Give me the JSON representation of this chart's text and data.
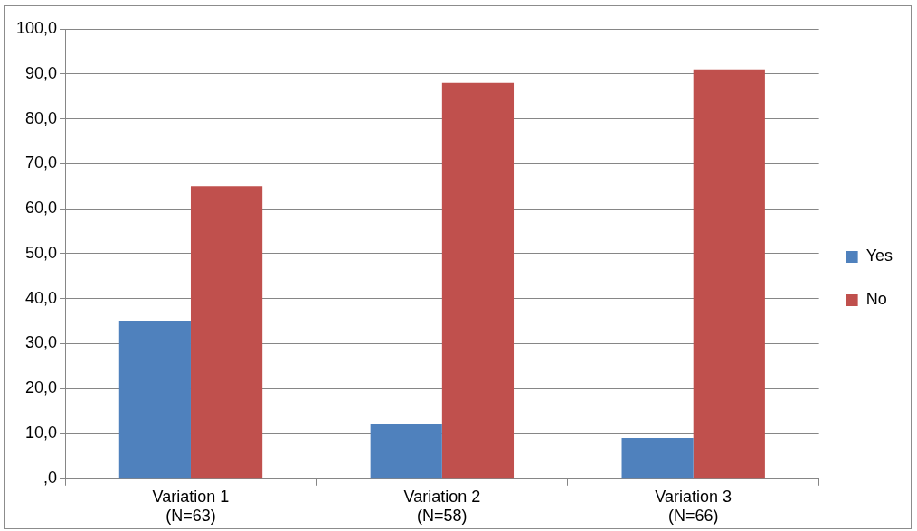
{
  "chart_data": {
    "type": "bar",
    "categories": [
      "Variation 1\n(N=63)",
      "Variation 2\n(N=58)",
      "Variation 3\n(N=66)"
    ],
    "series": [
      {
        "name": "Yes",
        "color": "#4f81bd",
        "values": [
          35,
          12,
          9
        ]
      },
      {
        "name": "No",
        "color": "#c0504d",
        "values": [
          65,
          88,
          91
        ]
      }
    ],
    "ylim": [
      0,
      100
    ],
    "yticks": [
      {
        "value": 0,
        "label": ",0"
      },
      {
        "value": 10,
        "label": "10,0"
      },
      {
        "value": 20,
        "label": "20,0"
      },
      {
        "value": 30,
        "label": "30,0"
      },
      {
        "value": 40,
        "label": "40,0"
      },
      {
        "value": 50,
        "label": "50,0"
      },
      {
        "value": 60,
        "label": "60,0"
      },
      {
        "value": 70,
        "label": "70,0"
      },
      {
        "value": 80,
        "label": "80,0"
      },
      {
        "value": 90,
        "label": "90,0"
      },
      {
        "value": 100,
        "label": "100,0"
      }
    ],
    "grid": "y",
    "legend": "right"
  }
}
